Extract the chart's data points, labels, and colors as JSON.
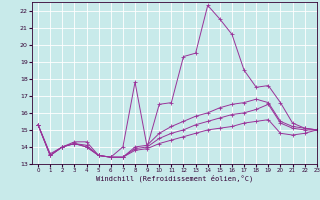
{
  "title": "",
  "xlabel": "Windchill (Refroidissement éolien,°C)",
  "ylabel": "",
  "xlim": [
    -0.5,
    23
  ],
  "ylim": [
    13,
    22.5
  ],
  "yticks": [
    13,
    14,
    15,
    16,
    17,
    18,
    19,
    20,
    21,
    22
  ],
  "xticks": [
    0,
    1,
    2,
    3,
    4,
    5,
    6,
    7,
    8,
    9,
    10,
    11,
    12,
    13,
    14,
    15,
    16,
    17,
    18,
    19,
    20,
    21,
    22,
    23
  ],
  "bg_color": "#c8eaea",
  "grid_color": "#aadddd",
  "line_color": "#993399",
  "lines": [
    {
      "x": [
        0,
        1,
        2,
        3,
        4,
        5,
        6,
        7,
        8,
        9,
        10,
        11,
        12,
        13,
        14,
        15,
        16,
        17,
        18,
        19,
        20,
        21,
        22,
        23
      ],
      "y": [
        15.3,
        13.5,
        14.0,
        14.3,
        14.3,
        13.5,
        13.4,
        14.0,
        17.8,
        14.0,
        16.5,
        16.6,
        19.3,
        19.5,
        22.3,
        21.5,
        20.6,
        18.5,
        17.5,
        17.6,
        16.6,
        15.4,
        15.1,
        15.0
      ]
    },
    {
      "x": [
        0,
        1,
        2,
        3,
        4,
        5,
        6,
        7,
        8,
        9,
        10,
        11,
        12,
        13,
        14,
        15,
        16,
        17,
        18,
        19,
        20,
        21,
        22,
        23
      ],
      "y": [
        15.3,
        13.5,
        14.0,
        14.2,
        14.1,
        13.5,
        13.4,
        13.4,
        14.0,
        14.1,
        14.8,
        15.2,
        15.5,
        15.8,
        16.0,
        16.3,
        16.5,
        16.6,
        16.8,
        16.6,
        15.5,
        15.2,
        15.1,
        15.0
      ]
    },
    {
      "x": [
        0,
        1,
        2,
        3,
        4,
        5,
        6,
        7,
        8,
        9,
        10,
        11,
        12,
        13,
        14,
        15,
        16,
        17,
        18,
        19,
        20,
        21,
        22,
        23
      ],
      "y": [
        15.3,
        13.5,
        14.0,
        14.2,
        14.0,
        13.5,
        13.4,
        13.4,
        13.9,
        14.0,
        14.5,
        14.8,
        15.0,
        15.3,
        15.5,
        15.7,
        15.9,
        16.0,
        16.2,
        16.5,
        15.4,
        15.1,
        15.0,
        15.0
      ]
    },
    {
      "x": [
        0,
        1,
        2,
        3,
        4,
        5,
        6,
        7,
        8,
        9,
        10,
        11,
        12,
        13,
        14,
        15,
        16,
        17,
        18,
        19,
        20,
        21,
        22,
        23
      ],
      "y": [
        15.3,
        13.6,
        14.0,
        14.2,
        14.0,
        13.5,
        13.4,
        13.4,
        13.8,
        13.9,
        14.2,
        14.4,
        14.6,
        14.8,
        15.0,
        15.1,
        15.2,
        15.4,
        15.5,
        15.6,
        14.8,
        14.7,
        14.8,
        15.0
      ]
    }
  ]
}
